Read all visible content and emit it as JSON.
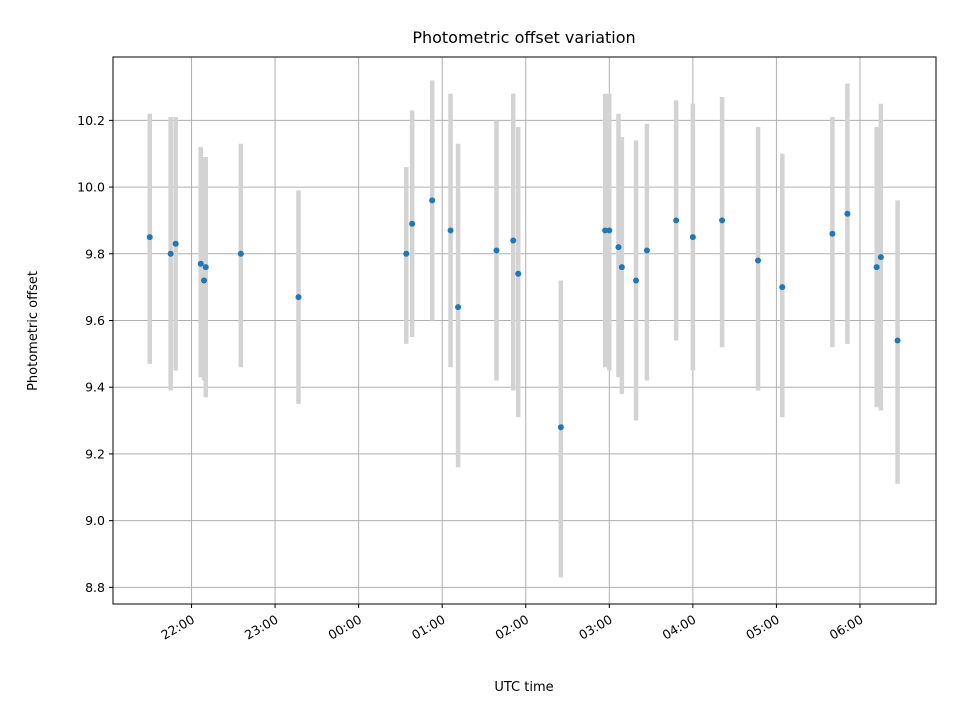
{
  "chart_data": {
    "type": "scatter",
    "title": "Photometric offset variation",
    "xlabel": "UTC time",
    "ylabel": "Photometric offset",
    "x_unit": "hours from 00:00 UTC",
    "xlim": [
      -2.94,
      6.91
    ],
    "ylim": [
      8.75,
      10.39
    ],
    "grid": true,
    "x_tick_values": [
      -2,
      -1,
      0,
      1,
      2,
      3,
      4,
      5,
      6
    ],
    "x_tick_labels": [
      "22:00",
      "23:00",
      "00:00",
      "01:00",
      "02:00",
      "03:00",
      "04:00",
      "05:00",
      "06:00"
    ],
    "y_ticks": [
      "8.8",
      "9.0",
      "9.2",
      "9.4",
      "9.6",
      "9.8",
      "10.0",
      "10.2"
    ],
    "point_color": "#1f77b4",
    "errorbar_color": "#d3d3d3",
    "points": [
      {
        "x": -2.5,
        "y": 9.85,
        "lo": 9.47,
        "hi": 10.22
      },
      {
        "x": -2.25,
        "y": 9.8,
        "lo": 9.39,
        "hi": 10.21
      },
      {
        "x": -2.19,
        "y": 9.83,
        "lo": 9.45,
        "hi": 10.21
      },
      {
        "x": -1.89,
        "y": 9.77,
        "lo": 9.43,
        "hi": 10.12
      },
      {
        "x": -1.85,
        "y": 9.72,
        "lo": 9.42,
        "hi": 10.09
      },
      {
        "x": -1.83,
        "y": 9.76,
        "lo": 9.37,
        "hi": 10.09
      },
      {
        "x": -1.41,
        "y": 9.8,
        "lo": 9.46,
        "hi": 10.13
      },
      {
        "x": -0.72,
        "y": 9.67,
        "lo": 9.35,
        "hi": 9.99
      },
      {
        "x": 0.57,
        "y": 9.8,
        "lo": 9.53,
        "hi": 10.06
      },
      {
        "x": 0.64,
        "y": 9.89,
        "lo": 9.55,
        "hi": 10.23
      },
      {
        "x": 0.88,
        "y": 9.96,
        "lo": 9.6,
        "hi": 10.32
      },
      {
        "x": 1.1,
        "y": 9.87,
        "lo": 9.46,
        "hi": 10.28
      },
      {
        "x": 1.19,
        "y": 9.64,
        "lo": 9.16,
        "hi": 10.13
      },
      {
        "x": 1.65,
        "y": 9.81,
        "lo": 9.42,
        "hi": 10.2
      },
      {
        "x": 1.85,
        "y": 9.84,
        "lo": 9.39,
        "hi": 10.28
      },
      {
        "x": 1.91,
        "y": 9.74,
        "lo": 9.31,
        "hi": 10.18
      },
      {
        "x": 2.42,
        "y": 9.28,
        "lo": 8.83,
        "hi": 9.72
      },
      {
        "x": 2.95,
        "y": 9.87,
        "lo": 9.46,
        "hi": 10.28
      },
      {
        "x": 3.0,
        "y": 9.87,
        "lo": 9.45,
        "hi": 10.28
      },
      {
        "x": 3.11,
        "y": 9.82,
        "lo": 9.43,
        "hi": 10.22
      },
      {
        "x": 3.15,
        "y": 9.76,
        "lo": 9.38,
        "hi": 10.15
      },
      {
        "x": 3.32,
        "y": 9.72,
        "lo": 9.3,
        "hi": 10.14
      },
      {
        "x": 3.45,
        "y": 9.81,
        "lo": 9.42,
        "hi": 10.19
      },
      {
        "x": 3.8,
        "y": 9.9,
        "lo": 9.54,
        "hi": 10.26
      },
      {
        "x": 4.0,
        "y": 9.85,
        "lo": 9.45,
        "hi": 10.25
      },
      {
        "x": 4.35,
        "y": 9.9,
        "lo": 9.52,
        "hi": 10.27
      },
      {
        "x": 4.78,
        "y": 9.78,
        "lo": 9.39,
        "hi": 10.18
      },
      {
        "x": 5.07,
        "y": 9.7,
        "lo": 9.31,
        "hi": 10.1
      },
      {
        "x": 5.67,
        "y": 9.86,
        "lo": 9.52,
        "hi": 10.21
      },
      {
        "x": 5.85,
        "y": 9.92,
        "lo": 9.53,
        "hi": 10.31
      },
      {
        "x": 6.2,
        "y": 9.76,
        "lo": 9.34,
        "hi": 10.18
      },
      {
        "x": 6.25,
        "y": 9.79,
        "lo": 9.33,
        "hi": 10.25
      },
      {
        "x": 6.45,
        "y": 9.54,
        "lo": 9.11,
        "hi": 9.96
      }
    ]
  }
}
